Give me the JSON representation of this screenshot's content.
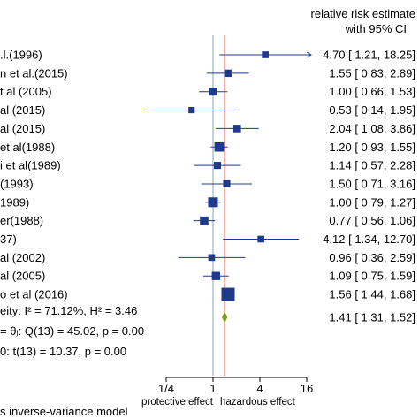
{
  "chart_data": {
    "type": "forest",
    "axis": {
      "scale": "log2",
      "ticks": [
        {
          "value": 0.25,
          "label": "1/4"
        },
        {
          "value": 1,
          "label": "1"
        },
        {
          "value": 4,
          "label": "4"
        },
        {
          "value": 16,
          "label": "16"
        }
      ],
      "xlim": [
        0.25,
        16
      ],
      "left_label": "protective effect",
      "right_label": "hazardous effect"
    },
    "header": [
      "relative risk estimate",
      "with 95% CI"
    ],
    "studies": [
      {
        "label": ".l.(1996)",
        "est": 4.7,
        "lo": 1.21,
        "hi": 18.25,
        "ci_text": "4.70 [ 1.21,  18.25]",
        "weight": 0.15
      },
      {
        "label": "n et al.(2015)",
        "est": 1.55,
        "lo": 0.83,
        "hi": 2.89,
        "ci_text": "1.55 [ 0.83,    2.89]",
        "weight": 0.2
      },
      {
        "label": "t al (2005)",
        "est": 1.0,
        "lo": 0.66,
        "hi": 1.53,
        "ci_text": "1.00 [ 0.66,    1.53]",
        "weight": 0.25
      },
      {
        "label": "al (2015)",
        "est": 0.53,
        "lo": 0.14,
        "hi": 1.95,
        "ci_text": "0.53 [ 0.14,    1.95]",
        "weight": 0.12
      },
      {
        "label": "al (2015)",
        "est": 2.04,
        "lo": 1.08,
        "hi": 3.86,
        "ci_text": "2.04 [ 1.08,    3.86]",
        "weight": 0.22
      },
      {
        "label": " et al(1988)",
        "est": 1.2,
        "lo": 0.93,
        "hi": 1.55,
        "ci_text": "1.20 [ 0.93,    1.55]",
        "weight": 0.4
      },
      {
        "label": "i et al(1989)",
        "est": 1.14,
        "lo": 0.57,
        "hi": 2.28,
        "ci_text": "1.14 [ 0.57,    2.28]",
        "weight": 0.18
      },
      {
        "label": "(1993)",
        "est": 1.5,
        "lo": 0.71,
        "hi": 3.16,
        "ci_text": "1.50 [ 0.71,    3.16]",
        "weight": 0.18
      },
      {
        "label": "1989)",
        "est": 1.0,
        "lo": 0.79,
        "hi": 1.27,
        "ci_text": "1.00 [ 0.79,    1.27]",
        "weight": 0.45
      },
      {
        "label": "er(1988)",
        "est": 0.77,
        "lo": 0.56,
        "hi": 1.06,
        "ci_text": "0.77 [ 0.56,    1.06]",
        "weight": 0.3
      },
      {
        "label": "37)",
        "est": 4.12,
        "lo": 1.34,
        "hi": 12.7,
        "ci_text": "4.12 [ 1.34,  12.70]",
        "weight": 0.15
      },
      {
        "label": "al (2002)",
        "est": 0.96,
        "lo": 0.36,
        "hi": 2.59,
        "ci_text": "0.96 [ 0.36,    2.59]",
        "weight": 0.15
      },
      {
        "label": "al (2005)",
        "est": 1.09,
        "lo": 0.75,
        "hi": 1.59,
        "ci_text": "1.09 [ 0.75,    1.59]",
        "weight": 0.28
      },
      {
        "label": "o et al (2016)",
        "est": 1.56,
        "lo": 1.44,
        "hi": 1.68,
        "ci_text": "1.56 [ 1.44,    1.68]",
        "weight": 1.0
      }
    ],
    "overall": {
      "est": 1.41,
      "lo": 1.31,
      "hi": 1.52,
      "ci_text": "1.41 [ 1.31,    1.52]"
    },
    "stats": [
      "eity: I² = 71.12%, H² = 3.46",
      "= θⱼ: Q(13) = 45.02, p = 0.00",
      "0: t(13) = 10.37, p = 0.00"
    ],
    "footer": "s inverse-variance model",
    "colors": {
      "ci": "#1f3a8a",
      "box": "#1f3a8a",
      "diamond": "#7a9a1c",
      "ref_line": "#7fa8a8",
      "overall_line": "#c0392b",
      "text": "#000000"
    }
  }
}
